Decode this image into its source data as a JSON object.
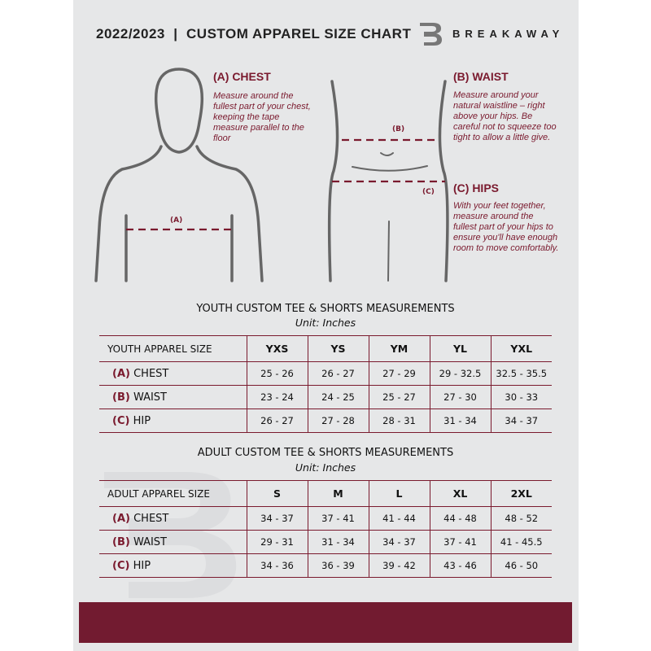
{
  "header": {
    "title": "2022/2023  |  CUSTOM APPAREL SIZE CHART",
    "brand": "BREAKAWAY",
    "logo_letter": "B"
  },
  "guide": {
    "chest": {
      "heading": "(A) CHEST",
      "marker": "(A)",
      "text": "Measure around the fullest part of your chest, keeping the tape measure parallel to the floor"
    },
    "waist": {
      "heading": "(B) WAIST",
      "marker": "(B)",
      "text": "Measure around your natural waistline – right above your hips. Be careful not to squeeze too tight to allow a little give."
    },
    "hips": {
      "heading": "(C) HIPS",
      "marker": "(C)",
      "text": "With your feet together, measure around the fullest part of your hips to ensure you'll have enough room to move comfortably."
    }
  },
  "youth": {
    "title": "YOUTH CUSTOM TEE & SHORTS MEASUREMENTS",
    "unit": "Unit: Inches",
    "header": "YOUTH APPAREL SIZE",
    "sizes": [
      "YXS",
      "YS",
      "YM",
      "YL",
      "YXL"
    ],
    "rows": [
      {
        "mark": "(A)",
        "label": "CHEST",
        "values": [
          "25 - 26",
          "26 - 27",
          "27 - 29",
          "29 - 32.5",
          "32.5 - 35.5"
        ]
      },
      {
        "mark": "(B)",
        "label": "WAIST",
        "values": [
          "23 - 24",
          "24 - 25",
          "25 - 27",
          "27 - 30",
          "30 - 33"
        ]
      },
      {
        "mark": "(C)",
        "label": "HIP",
        "values": [
          "26 - 27",
          "27 - 28",
          "28 - 31",
          "31 - 34",
          "34 - 37"
        ]
      }
    ]
  },
  "adult": {
    "title": "ADULT CUSTOM TEE & SHORTS MEASUREMENTS",
    "unit": "Unit: Inches",
    "header": "ADULT APPAREL SIZE",
    "sizes": [
      "S",
      "M",
      "L",
      "XL",
      "2XL"
    ],
    "rows": [
      {
        "mark": "(A)",
        "label": "CHEST",
        "values": [
          "34 - 37",
          "37 - 41",
          "41 - 44",
          "44 - 48",
          "48 - 52"
        ]
      },
      {
        "mark": "(B)",
        "label": "WAIST",
        "values": [
          "29 - 31",
          "31 - 34",
          "34 - 37",
          "37 - 41",
          "41 - 45.5"
        ]
      },
      {
        "mark": "(C)",
        "label": "HIP",
        "values": [
          "34 - 36",
          "36 - 39",
          "39 - 42",
          "43 - 46",
          "46 - 50"
        ]
      }
    ]
  }
}
